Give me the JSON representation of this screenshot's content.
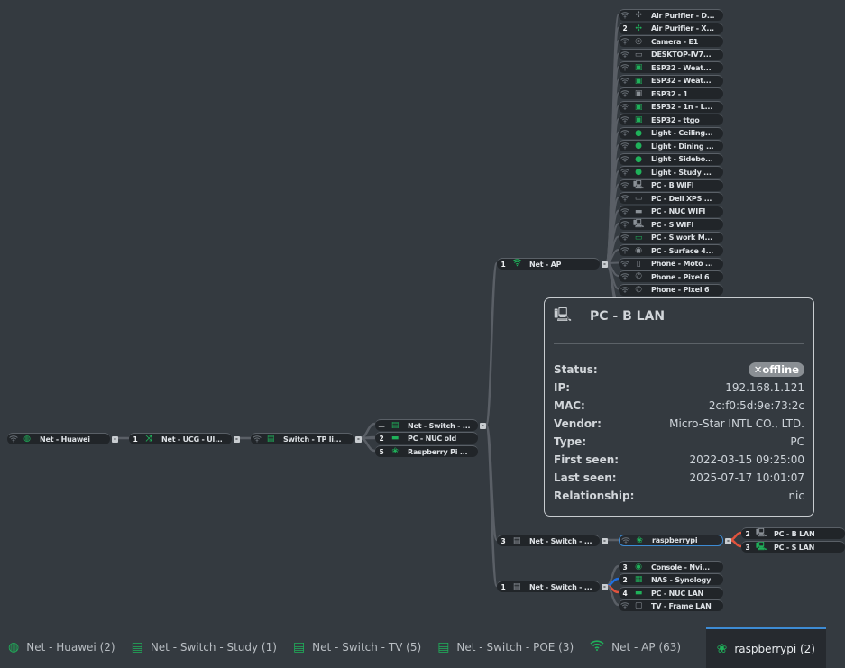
{
  "colors": {
    "accent": "#3d8bd4",
    "online": "#1fb15a",
    "offline": "#8a9096",
    "edge": "#5a5f66",
    "edge_red": "#e0533d",
    "edge_blue": "#1f6fe0"
  },
  "tree": {
    "chain": [
      {
        "badge": "wifi",
        "icon": "globe-icon",
        "color": "green",
        "label": "Net - Huawei"
      },
      {
        "badge": "1",
        "icon": "shuffle-icon",
        "color": "green",
        "label": "Net - UCG - Ul..."
      },
      {
        "badge": "wifi",
        "icon": "switch-icon",
        "color": "green",
        "label": "Switch - TP li..."
      }
    ],
    "switch_children": [
      {
        "badge": "—",
        "icon": "switch-icon",
        "color": "green",
        "label": "Net - Switch - ..."
      },
      {
        "badge": "2",
        "icon": "nuc-icon",
        "color": "green",
        "label": "PC - NUC old"
      },
      {
        "badge": "5",
        "icon": "raspberry-icon",
        "color": "green",
        "label": "Raspberry Pi ..."
      }
    ],
    "level2": [
      {
        "badge": "1",
        "icon": "wifi-icon",
        "color": "green",
        "label": "Net - AP"
      },
      {
        "badge": "3",
        "icon": "switch-icon",
        "color": "gray",
        "label": "Net - Switch - ..."
      },
      {
        "badge": "1",
        "icon": "switch-icon",
        "color": "gray",
        "label": "Net - Switch - ..."
      }
    ],
    "ap_children": [
      {
        "badge": "wifi",
        "icon": "fan-icon",
        "color": "gray",
        "label": "Air Purifier - D..."
      },
      {
        "badge": "2",
        "icon": "fan-icon",
        "color": "green",
        "label": "Air Purifier - X..."
      },
      {
        "badge": "wifi",
        "icon": "camera-icon",
        "color": "gray",
        "label": "Camera - E1"
      },
      {
        "badge": "wifi",
        "icon": "monitor-icon",
        "color": "gray",
        "label": "DESKTOP-IV7..."
      },
      {
        "badge": "wifi",
        "icon": "chip-icon",
        "color": "green",
        "label": "ESP32 - Weat..."
      },
      {
        "badge": "wifi",
        "icon": "chip-icon",
        "color": "green",
        "label": "ESP32 - Weat..."
      },
      {
        "badge": "wifi",
        "icon": "chip-icon",
        "color": "gray",
        "label": "ESP32 - 1"
      },
      {
        "badge": "wifi",
        "icon": "chip-icon",
        "color": "green",
        "label": "ESP32 - 1n - L..."
      },
      {
        "badge": "wifi",
        "icon": "chip-icon",
        "color": "green",
        "label": "ESP32 - ttgo"
      },
      {
        "badge": "wifi",
        "icon": "bulb-icon",
        "color": "green",
        "label": "Light - Ceiling..."
      },
      {
        "badge": "wifi",
        "icon": "bulb-icon",
        "color": "green",
        "label": "Light - Dining ..."
      },
      {
        "badge": "wifi",
        "icon": "bulb-icon",
        "color": "green",
        "label": "Light - Sidebo..."
      },
      {
        "badge": "wifi",
        "icon": "bulb-icon",
        "color": "green",
        "label": "Light - Study ..."
      },
      {
        "badge": "wifi",
        "icon": "pc-icon",
        "color": "gray",
        "label": "PC - B WIFI"
      },
      {
        "badge": "wifi",
        "icon": "monitor-icon",
        "color": "gray",
        "label": "PC - Dell XPS ..."
      },
      {
        "badge": "wifi",
        "icon": "nuc-icon",
        "color": "gray",
        "label": "PC - NUC WIFI"
      },
      {
        "badge": "wifi",
        "icon": "pc-icon",
        "color": "gray",
        "label": "PC - S WIFI"
      },
      {
        "badge": "wifi",
        "icon": "monitor-icon",
        "color": "green",
        "label": "PC - S work M..."
      },
      {
        "badge": "wifi",
        "icon": "gamepad-icon",
        "color": "gray",
        "label": "PC - Surface 4..."
      },
      {
        "badge": "wifi",
        "icon": "phone-icon",
        "color": "gray",
        "label": "Phone - Moto ..."
      },
      {
        "badge": "wifi",
        "icon": "handset-icon",
        "color": "gray",
        "label": "Phone - Pixel 6"
      },
      {
        "badge": "wifi",
        "icon": "handset-icon",
        "color": "gray",
        "label": "Phone - Pixel 6"
      }
    ],
    "raspberrypi": {
      "badge": "wifi",
      "icon": "raspberry-icon",
      "color": "green",
      "label": "raspberrypi"
    },
    "rpi_children": [
      {
        "badge": "2",
        "icon": "pc-icon",
        "color": "gray",
        "label": "PC - B LAN",
        "edge": "red"
      },
      {
        "badge": "3",
        "icon": "pc-icon",
        "color": "green",
        "label": "PC - S LAN",
        "edge": "red"
      }
    ],
    "poe_children": [
      {
        "badge": "3",
        "icon": "gamepad-icon",
        "color": "green",
        "label": "Console - Nvi...",
        "edge": "gray"
      },
      {
        "badge": "2",
        "icon": "nas-icon",
        "color": "green",
        "label": "NAS - Synology",
        "edge": "blue"
      },
      {
        "badge": "4",
        "icon": "nuc-icon",
        "color": "green",
        "label": "PC - NUC LAN",
        "edge": "red"
      },
      {
        "badge": "wifi",
        "icon": "tv-icon",
        "color": "gray",
        "label": "TV - Frame LAN",
        "edge": "gray"
      }
    ]
  },
  "popup": {
    "icon": "pc-icon",
    "title": "PC - B LAN",
    "rows": [
      {
        "key": "Status:",
        "value": "offline",
        "status_icon": "x-icon"
      },
      {
        "key": "IP:",
        "value": "192.168.1.121"
      },
      {
        "key": "MAC:",
        "value": "2c:f0:5d:9e:73:2c"
      },
      {
        "key": "Vendor:",
        "value": "Micro-Star INTL CO., LTD."
      },
      {
        "key": "Type:",
        "value": "PC"
      },
      {
        "key": "First seen:",
        "value": "2022-03-15 09:25:00"
      },
      {
        "key": "Last seen:",
        "value": "2025-07-17 10:01:07"
      },
      {
        "key": "Relationship:",
        "value": "nic"
      }
    ]
  },
  "tabs": [
    {
      "icon": "globe-icon",
      "label": "Net - Huawei (2)"
    },
    {
      "icon": "switch-icon",
      "label": "Net - Switch - Study (1)"
    },
    {
      "icon": "switch-icon",
      "label": "Net - Switch - TV (5)"
    },
    {
      "icon": "switch-icon",
      "label": "Net - Switch - POE (3)"
    },
    {
      "icon": "wifi-icon",
      "label": "Net - AP (63)"
    },
    {
      "icon": "raspberry-icon",
      "label": "raspberrypi (2)",
      "active": true
    }
  ]
}
